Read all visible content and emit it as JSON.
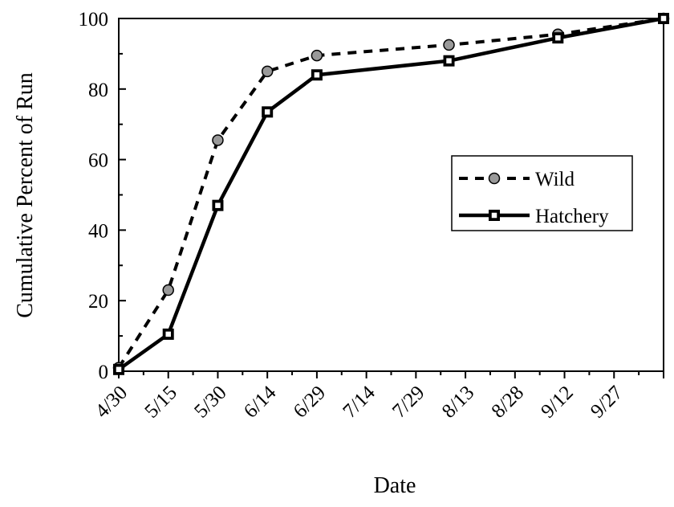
{
  "chart_data": {
    "type": "line",
    "title": "",
    "xlabel": "Date",
    "ylabel": "Cumulative Percent of Run",
    "ylim": [
      0,
      100
    ],
    "yticks": [
      "0",
      "20",
      "40",
      "60",
      "80",
      "100"
    ],
    "x_tick_labels": [
      "4/30",
      "5/15",
      "5/30",
      "6/14",
      "6/29",
      "7/14",
      "7/29",
      "8/13",
      "8/28",
      "9/12",
      "9/27"
    ],
    "x_axis_start": "4/30",
    "x_axis_end": "10/12",
    "grid": false,
    "legend_position": "right-center",
    "series": [
      {
        "name": "Wild",
        "color": "#000000",
        "line_style": "dashed",
        "marker": "circle",
        "marker_fill": "#999999",
        "x": [
          "4/30",
          "5/15",
          "5/30",
          "6/14",
          "6/29",
          "8/8",
          "9/10",
          "10/12"
        ],
        "y": [
          1,
          23,
          65.5,
          85,
          89.5,
          92.5,
          95.5,
          100
        ]
      },
      {
        "name": "Hatchery",
        "color": "#000000",
        "line_style": "solid",
        "marker": "square",
        "marker_fill": "#ffffff",
        "x": [
          "4/30",
          "5/15",
          "5/30",
          "6/14",
          "6/29",
          "8/8",
          "9/10",
          "10/12"
        ],
        "y": [
          0.5,
          10.5,
          47,
          73.5,
          84,
          88,
          94.5,
          100
        ]
      }
    ]
  }
}
